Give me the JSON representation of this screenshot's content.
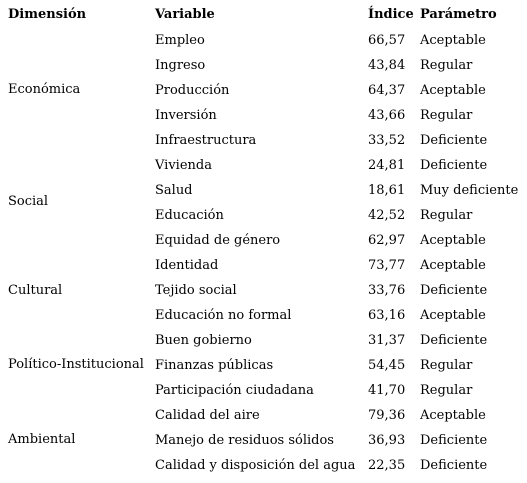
{
  "headers": {
    "dimension": "Dimensión",
    "variable": "Variable",
    "index": "Índice",
    "parameter": "Parámetro"
  },
  "dimensions": [
    "Económica",
    "Social",
    "Cultural",
    "Político-Institucional",
    "Ambiental"
  ],
  "rows": [
    {
      "variable": "Empleo",
      "index": "66,57",
      "parameter": "Aceptable"
    },
    {
      "variable": "Ingreso",
      "index": "43,84",
      "parameter": "Regular"
    },
    {
      "variable": "Producción",
      "index": "64,37",
      "parameter": "Aceptable"
    },
    {
      "variable": "Inversión",
      "index": "43,66",
      "parameter": "Regular"
    },
    {
      "variable": "Infraestructura",
      "index": "33,52",
      "parameter": "Deficiente"
    },
    {
      "variable": "Vivienda",
      "index": "24,81",
      "parameter": "Deficiente"
    },
    {
      "variable": "Salud",
      "index": "18,61",
      "parameter": "Muy deficiente"
    },
    {
      "variable": "Educación",
      "index": "42,52",
      "parameter": "Regular"
    },
    {
      "variable": "Equidad de género",
      "index": "62,97",
      "parameter": "Aceptable"
    },
    {
      "variable": "Identidad",
      "index": "73,77",
      "parameter": "Aceptable"
    },
    {
      "variable": "Tejido social",
      "index": "33,76",
      "parameter": "Deficiente"
    },
    {
      "variable": "Educación no formal",
      "index": "63,16",
      "parameter": "Aceptable"
    },
    {
      "variable": "Buen gobierno",
      "index": "31,37",
      "parameter": "Deficiente"
    },
    {
      "variable": "Finanzas públicas",
      "index": "54,45",
      "parameter": "Regular"
    },
    {
      "variable": "Participación ciudadana",
      "index": "41,70",
      "parameter": "Regular"
    },
    {
      "variable": "Calidad del aire",
      "index": "79,36",
      "parameter": "Aceptable"
    },
    {
      "variable": "Manejo de residuos sólidos",
      "index": "36,93",
      "parameter": "Deficiente"
    },
    {
      "variable": "Calidad y disposición del agua",
      "index": "22,35",
      "parameter": "Deficiente"
    }
  ]
}
